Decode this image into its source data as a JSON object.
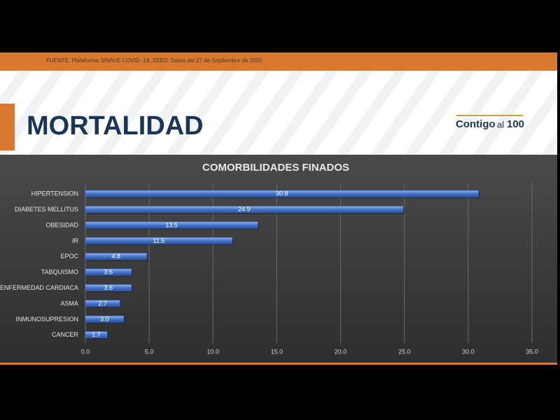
{
  "header": {
    "source": "FUENTE. Plataforma SINAVE COVID -19, SEED. Datos del 27 de Septiembre de 2020",
    "title": "MORTALIDAD",
    "logo": [
      "Contigo",
      "al",
      "100"
    ]
  },
  "chart_data": {
    "type": "bar",
    "title": "COMORBILIDADES FINADOS",
    "categories": [
      "HIPERTENSION",
      "DIABETES MELLITUS",
      "OBESIDAD",
      "IR",
      "EPOC",
      "TABQUISMO",
      "ENFERMEDAD CARDIACA",
      "ASMA",
      "INMUNOSUPRESION",
      "CANCER"
    ],
    "values": [
      30.8,
      24.9,
      13.5,
      11.5,
      4.8,
      3.6,
      3.6,
      2.7,
      3.0,
      1.7
    ],
    "value_labels": [
      "30.8",
      "24.9",
      "13.5",
      "11.5",
      "4.8",
      "3.6",
      "3.6",
      "2.7",
      "3.0",
      "1.7"
    ],
    "color": "#4a7bd4",
    "xlim": [
      0,
      35
    ],
    "xticks": [
      {
        "value": 0,
        "label": "0.0"
      },
      {
        "value": 5,
        "label": "5.0"
      },
      {
        "value": 10,
        "label": "10.0"
      },
      {
        "value": 15,
        "label": "15.0"
      },
      {
        "value": 20,
        "label": "20.0"
      },
      {
        "value": 25,
        "label": "25.0"
      },
      {
        "value": 30,
        "label": "30.0"
      },
      {
        "value": 35,
        "label": "35.0"
      }
    ],
    "grid": true
  }
}
